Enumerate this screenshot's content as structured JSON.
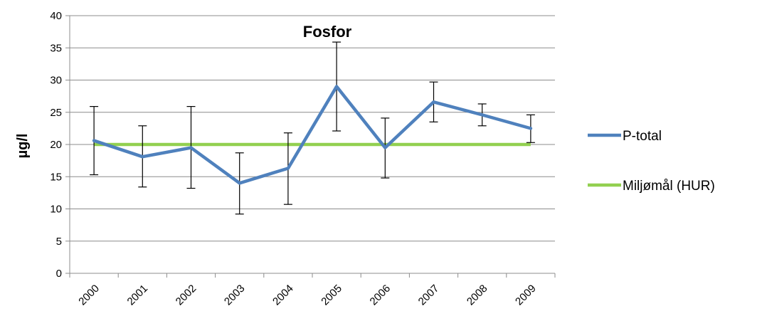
{
  "chart_data": {
    "type": "line",
    "title": "Fosfor",
    "ylabel": "µg/l",
    "xlabel": "",
    "ylim": [
      0,
      40
    ],
    "ytick_step": 5,
    "yticks": [
      "0",
      "5",
      "10",
      "15",
      "20",
      "25",
      "30",
      "35",
      "40"
    ],
    "grid": true,
    "legend_position": "right",
    "categories": [
      "2000",
      "2001",
      "2002",
      "2003",
      "2004",
      "2005",
      "2006",
      "2007",
      "2008",
      "2009"
    ],
    "series": [
      {
        "name": "P-total",
        "color": "#4f81bd",
        "values": [
          20.6,
          18.1,
          19.5,
          14.0,
          16.3,
          29.0,
          19.5,
          26.6,
          24.6,
          22.5
        ],
        "error_high": [
          25.9,
          22.9,
          25.9,
          18.7,
          21.8,
          35.9,
          24.1,
          29.7,
          26.3,
          24.6
        ],
        "error_low": [
          15.3,
          13.4,
          13.2,
          9.2,
          10.7,
          22.1,
          14.8,
          23.5,
          22.9,
          20.3
        ]
      },
      {
        "name": "Miljømål (HUR)",
        "color": "#92d050",
        "values": [
          20,
          20,
          20,
          20,
          20,
          20,
          20,
          20,
          20,
          20
        ]
      }
    ]
  }
}
